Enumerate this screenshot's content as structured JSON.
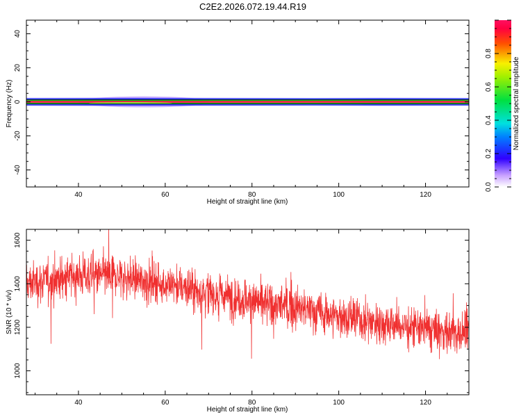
{
  "title": "C2E2.2026.072.19.44.R19",
  "chart_data": [
    {
      "type": "heatmap",
      "title": "",
      "xlabel": "Height of straight line (km)",
      "ylabel": "Frequency (Hz)",
      "xlim": [
        28,
        130
      ],
      "ylim": [
        -50,
        48
      ],
      "xticks": [
        "40",
        "60",
        "80",
        "100",
        "120"
      ],
      "yticks": [
        "-40",
        "-20",
        "0",
        "20",
        "40"
      ],
      "description_bands": [
        {
          "freq_hz": 0,
          "amplitude": 0.95
        },
        {
          "freq_hz": 0.8,
          "amplitude": 0.7
        },
        {
          "freq_hz": -0.8,
          "amplitude": 0.7
        },
        {
          "freq_hz": 1.8,
          "amplitude": 0.2
        },
        {
          "freq_hz": -1.8,
          "amplitude": 0.2
        }
      ],
      "colorbar": {
        "label": "Normalized spectral amplitude",
        "range": [
          0.0,
          1.0
        ],
        "ticks": [
          "0.0",
          "0.2",
          "0.4",
          "0.6",
          "0.8"
        ]
      }
    },
    {
      "type": "line",
      "title": "",
      "xlabel": "Height of straight line (km)",
      "ylabel": "SNR (10 * v/v)",
      "xlim": [
        28,
        130
      ],
      "ylim": [
        890,
        1650
      ],
      "xticks": [
        "40",
        "60",
        "80",
        "100",
        "120"
      ],
      "yticks": [
        "1000",
        "1200",
        "1400",
        "1600"
      ],
      "series": [
        {
          "color": "#f03030",
          "trend_x": [
            28,
            40,
            50,
            60,
            70,
            80,
            90,
            100,
            110,
            120,
            130
          ],
          "trend_y": [
            1400,
            1440,
            1430,
            1400,
            1360,
            1320,
            1290,
            1250,
            1220,
            1190,
            1170
          ],
          "noise_amplitude": 90,
          "point_count": 2000
        }
      ]
    }
  ]
}
